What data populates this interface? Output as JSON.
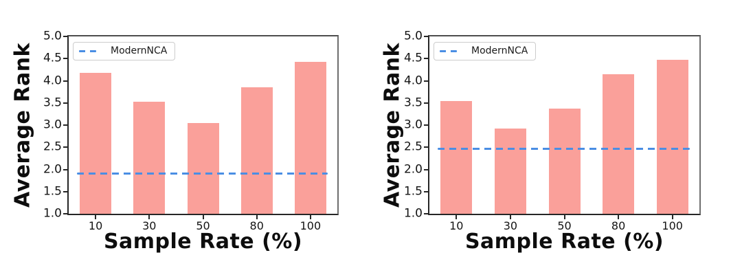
{
  "figure": {
    "background": "#ffffff"
  },
  "chart_data": [
    {
      "type": "bar",
      "title": "",
      "categories": [
        "10",
        "30",
        "50",
        "80",
        "100"
      ],
      "values": [
        4.18,
        3.53,
        3.04,
        3.85,
        4.43
      ],
      "xlabel": "Sample Rate (%)",
      "ylabel": "Average Rank",
      "ylim": [
        1.0,
        5.0
      ],
      "yticks": [
        1.0,
        1.5,
        2.0,
        2.5,
        3.0,
        3.5,
        4.0,
        4.5,
        5.0
      ],
      "grid": false,
      "bar_color": "#FAA09A",
      "legend": {
        "position": "upper-left",
        "items": [
          {
            "label": "ModernNCA",
            "marker": "dashed-line",
            "color": "#4A8EE4"
          }
        ]
      },
      "reference_line": {
        "series": "ModernNCA",
        "value": 1.9,
        "style": "dashed",
        "color": "#4A8EE4"
      }
    },
    {
      "type": "bar",
      "title": "",
      "categories": [
        "10",
        "30",
        "50",
        "80",
        "100"
      ],
      "values": [
        3.54,
        2.92,
        3.38,
        4.15,
        4.48
      ],
      "xlabel": "Sample Rate (%)",
      "ylabel": "Average Rank",
      "ylim": [
        1.0,
        5.0
      ],
      "yticks": [
        1.0,
        1.5,
        2.0,
        2.5,
        3.0,
        3.5,
        4.0,
        4.5,
        5.0
      ],
      "grid": false,
      "bar_color": "#FAA09A",
      "legend": {
        "position": "upper-left",
        "items": [
          {
            "label": "ModernNCA",
            "marker": "dashed-line",
            "color": "#4A8EE4"
          }
        ]
      },
      "reference_line": {
        "series": "ModernNCA",
        "value": 2.45,
        "style": "dashed",
        "color": "#4A8EE4"
      }
    }
  ]
}
